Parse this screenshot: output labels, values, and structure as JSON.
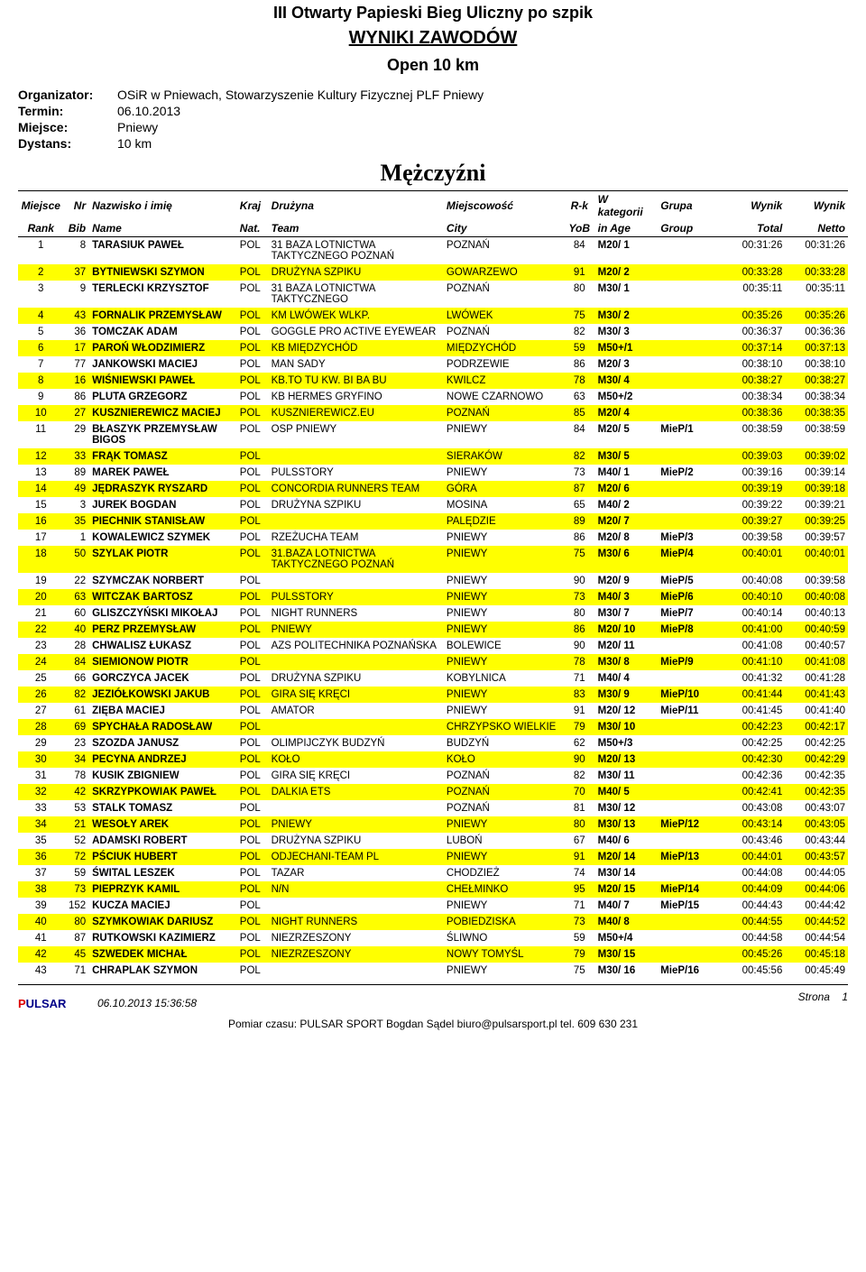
{
  "titles": {
    "main": "III Otwarty Papieski Bieg Uliczny po szpik",
    "sub": "WYNIKI ZAWODÓW",
    "category": "Open 10 km",
    "gender": "Mężczyźni"
  },
  "meta": {
    "organizer_label": "Organizator:",
    "organizer_value": "OSiR w Pniewach, Stowarzyszenie Kultury Fizycznej PLF Pniewy",
    "date_label": "Termin:",
    "date_value": "06.10.2013",
    "place_label": "Miejsce:",
    "place_value": "Pniewy",
    "distance_label": "Dystans:",
    "distance_value": "10 km"
  },
  "headers": {
    "rank1": "Miejsce",
    "rank2": "Rank",
    "bib1": "Nr",
    "bib2": "Bib",
    "name1": "Nazwisko i imię",
    "name2": "Name",
    "nat1": "Kraj",
    "nat2": "Nat.",
    "team1": "Drużyna",
    "team2": "Team",
    "city1": "Miejscowość",
    "city2": "City",
    "yob1": "R-k",
    "yob2": "YoB",
    "age1": "W kategorii",
    "age2": "in Age",
    "group1": "Grupa",
    "group2": "Group",
    "total1": "Wynik",
    "total2": "Total",
    "netto1": "Wynik",
    "netto2": "Netto"
  },
  "rows": [
    {
      "rank": "1",
      "bib": "8",
      "name": "TARASIUK PAWEŁ",
      "nat": "POL",
      "team": "31 BAZA LOTNICTWA TAKTYCZNEGO POZNAŃ",
      "city": "POZNAŃ",
      "yob": "84",
      "age": "M20/ 1",
      "group": "",
      "total": "00:31:26",
      "netto": "00:31:26",
      "hl": false
    },
    {
      "rank": "2",
      "bib": "37",
      "name": "BYTNIEWSKI SZYMON",
      "nat": "POL",
      "team": "DRUŻYNA SZPIKU",
      "city": "GOWARZEWO",
      "yob": "91",
      "age": "M20/ 2",
      "group": "",
      "total": "00:33:28",
      "netto": "00:33:28",
      "hl": true
    },
    {
      "rank": "3",
      "bib": "9",
      "name": "TERLECKI KRZYSZTOF",
      "nat": "POL",
      "team": "31 BAZA LOTNICTWA TAKTYCZNEGO",
      "city": "POZNAŃ",
      "yob": "80",
      "age": "M30/ 1",
      "group": "",
      "total": "00:35:11",
      "netto": "00:35:11",
      "hl": false
    },
    {
      "rank": "4",
      "bib": "43",
      "name": "FORNALIK PRZEMYSŁAW",
      "nat": "POL",
      "team": "KM LWÓWEK WLKP.",
      "city": "LWÓWEK",
      "yob": "75",
      "age": "M30/ 2",
      "group": "",
      "total": "00:35:26",
      "netto": "00:35:26",
      "hl": true
    },
    {
      "rank": "5",
      "bib": "36",
      "name": "TOMCZAK ADAM",
      "nat": "POL",
      "team": "GOGGLE PRO ACTIVE EYEWEAR",
      "city": "POZNAŃ",
      "yob": "82",
      "age": "M30/ 3",
      "group": "",
      "total": "00:36:37",
      "netto": "00:36:36",
      "hl": false
    },
    {
      "rank": "6",
      "bib": "17",
      "name": "PAROŃ WŁODZIMIERZ",
      "nat": "POL",
      "team": "KB MIĘDZYCHÓD",
      "city": "MIĘDZYCHÓD",
      "yob": "59",
      "age": "M50+/1",
      "group": "",
      "total": "00:37:14",
      "netto": "00:37:13",
      "hl": true
    },
    {
      "rank": "7",
      "bib": "77",
      "name": "JANKOWSKI MACIEJ",
      "nat": "POL",
      "team": "MAN SADY",
      "city": "PODRZEWIE",
      "yob": "86",
      "age": "M20/ 3",
      "group": "",
      "total": "00:38:10",
      "netto": "00:38:10",
      "hl": false
    },
    {
      "rank": "8",
      "bib": "16",
      "name": "WIŚNIEWSKI PAWEŁ",
      "nat": "POL",
      "team": "KB.TO TU KW. BI BA BU",
      "city": "KWILCZ",
      "yob": "78",
      "age": "M30/ 4",
      "group": "",
      "total": "00:38:27",
      "netto": "00:38:27",
      "hl": true
    },
    {
      "rank": "9",
      "bib": "86",
      "name": "PLUTA GRZEGORZ",
      "nat": "POL",
      "team": "KB HERMES GRYFINO",
      "city": "NOWE CZARNOWO",
      "yob": "63",
      "age": "M50+/2",
      "group": "",
      "total": "00:38:34",
      "netto": "00:38:34",
      "hl": false
    },
    {
      "rank": "10",
      "bib": "27",
      "name": "KUSZNIEREWICZ MACIEJ",
      "nat": "POL",
      "team": "KUSZNIEREWICZ.EU",
      "city": "POZNAŃ",
      "yob": "85",
      "age": "M20/ 4",
      "group": "",
      "total": "00:38:36",
      "netto": "00:38:35",
      "hl": true
    },
    {
      "rank": "11",
      "bib": "29",
      "name": "BŁASZYK PRZEMYSŁAW BIGOS",
      "nat": "POL",
      "team": "OSP PNIEWY",
      "city": "PNIEWY",
      "yob": "84",
      "age": "M20/ 5",
      "group": "MieP/1",
      "total": "00:38:59",
      "netto": "00:38:59",
      "hl": false
    },
    {
      "rank": "12",
      "bib": "33",
      "name": "FRĄK TOMASZ",
      "nat": "POL",
      "team": "",
      "city": "SIERAKÓW",
      "yob": "82",
      "age": "M30/ 5",
      "group": "",
      "total": "00:39:03",
      "netto": "00:39:02",
      "hl": true
    },
    {
      "rank": "13",
      "bib": "89",
      "name": "MAREK PAWEŁ",
      "nat": "POL",
      "team": "PULSSTORY",
      "city": "PNIEWY",
      "yob": "73",
      "age": "M40/ 1",
      "group": "MieP/2",
      "total": "00:39:16",
      "netto": "00:39:14",
      "hl": false
    },
    {
      "rank": "14",
      "bib": "49",
      "name": "JĘDRASZYK RYSZARD",
      "nat": "POL",
      "team": "CONCORDIA RUNNERS TEAM",
      "city": "GÓRA",
      "yob": "87",
      "age": "M20/ 6",
      "group": "",
      "total": "00:39:19",
      "netto": "00:39:18",
      "hl": true
    },
    {
      "rank": "15",
      "bib": "3",
      "name": "JUREK BOGDAN",
      "nat": "POL",
      "team": "DRUŻYNA SZPIKU",
      "city": "MOSINA",
      "yob": "65",
      "age": "M40/ 2",
      "group": "",
      "total": "00:39:22",
      "netto": "00:39:21",
      "hl": false
    },
    {
      "rank": "16",
      "bib": "35",
      "name": "PIECHNIK STANISŁAW",
      "nat": "POL",
      "team": "",
      "city": "PALĘDZIE",
      "yob": "89",
      "age": "M20/ 7",
      "group": "",
      "total": "00:39:27",
      "netto": "00:39:25",
      "hl": true
    },
    {
      "rank": "17",
      "bib": "1",
      "name": "KOWALEWICZ SZYMEK",
      "nat": "POL",
      "team": "RZEŻUCHA TEAM",
      "city": "PNIEWY",
      "yob": "86",
      "age": "M20/ 8",
      "group": "MieP/3",
      "total": "00:39:58",
      "netto": "00:39:57",
      "hl": false
    },
    {
      "rank": "18",
      "bib": "50",
      "name": "SZYLAK PIOTR",
      "nat": "POL",
      "team": "31.BAZA LOTNICTWA TAKTYCZNEGO POZNAŃ",
      "city": "PNIEWY",
      "yob": "75",
      "age": "M30/ 6",
      "group": "MieP/4",
      "total": "00:40:01",
      "netto": "00:40:01",
      "hl": true
    },
    {
      "rank": "19",
      "bib": "22",
      "name": "SZYMCZAK NORBERT",
      "nat": "POL",
      "team": "",
      "city": "PNIEWY",
      "yob": "90",
      "age": "M20/ 9",
      "group": "MieP/5",
      "total": "00:40:08",
      "netto": "00:39:58",
      "hl": false
    },
    {
      "rank": "20",
      "bib": "63",
      "name": "WITCZAK BARTOSZ",
      "nat": "POL",
      "team": "PULSSTORY",
      "city": "PNIEWY",
      "yob": "73",
      "age": "M40/ 3",
      "group": "MieP/6",
      "total": "00:40:10",
      "netto": "00:40:08",
      "hl": true
    },
    {
      "rank": "21",
      "bib": "60",
      "name": "GLISZCZYŃSKI MIKOŁAJ",
      "nat": "POL",
      "team": "NIGHT RUNNERS",
      "city": "PNIEWY",
      "yob": "80",
      "age": "M30/ 7",
      "group": "MieP/7",
      "total": "00:40:14",
      "netto": "00:40:13",
      "hl": false
    },
    {
      "rank": "22",
      "bib": "40",
      "name": "PERZ PRZEMYSŁAW",
      "nat": "POL",
      "team": "PNIEWY",
      "city": "PNIEWY",
      "yob": "86",
      "age": "M20/ 10",
      "group": "MieP/8",
      "total": "00:41:00",
      "netto": "00:40:59",
      "hl": true
    },
    {
      "rank": "23",
      "bib": "28",
      "name": "CHWALISZ ŁUKASZ",
      "nat": "POL",
      "team": "AZS POLITECHNIKA POZNAŃSKA",
      "city": "BOLEWICE",
      "yob": "90",
      "age": "M20/ 11",
      "group": "",
      "total": "00:41:08",
      "netto": "00:40:57",
      "hl": false
    },
    {
      "rank": "24",
      "bib": "84",
      "name": "SIEMIONOW PIOTR",
      "nat": "POL",
      "team": "",
      "city": "PNIEWY",
      "yob": "78",
      "age": "M30/ 8",
      "group": "MieP/9",
      "total": "00:41:10",
      "netto": "00:41:08",
      "hl": true
    },
    {
      "rank": "25",
      "bib": "66",
      "name": "GORCZYCA JACEK",
      "nat": "POL",
      "team": "DRUŻYNA SZPIKU",
      "city": "KOBYLNICA",
      "yob": "71",
      "age": "M40/ 4",
      "group": "",
      "total": "00:41:32",
      "netto": "00:41:28",
      "hl": false
    },
    {
      "rank": "26",
      "bib": "82",
      "name": "JEZIÓŁKOWSKI JAKUB",
      "nat": "POL",
      "team": "GIRA SIĘ KRĘCI",
      "city": "PNIEWY",
      "yob": "83",
      "age": "M30/ 9",
      "group": "MieP/10",
      "total": "00:41:44",
      "netto": "00:41:43",
      "hl": true
    },
    {
      "rank": "27",
      "bib": "61",
      "name": "ZIĘBA MACIEJ",
      "nat": "POL",
      "team": "AMATOR",
      "city": "PNIEWY",
      "yob": "91",
      "age": "M20/ 12",
      "group": "MieP/11",
      "total": "00:41:45",
      "netto": "00:41:40",
      "hl": false
    },
    {
      "rank": "28",
      "bib": "69",
      "name": "SPYCHAŁA RADOSŁAW",
      "nat": "POL",
      "team": "",
      "city": "CHRZYPSKO WIELKIE",
      "yob": "79",
      "age": "M30/ 10",
      "group": "",
      "total": "00:42:23",
      "netto": "00:42:17",
      "hl": true
    },
    {
      "rank": "29",
      "bib": "23",
      "name": "SZOZDA JANUSZ",
      "nat": "POL",
      "team": "OLIMPIJCZYK BUDZYŃ",
      "city": "BUDZYŃ",
      "yob": "62",
      "age": "M50+/3",
      "group": "",
      "total": "00:42:25",
      "netto": "00:42:25",
      "hl": false
    },
    {
      "rank": "30",
      "bib": "34",
      "name": "PECYNA ANDRZEJ",
      "nat": "POL",
      "team": "KOŁO",
      "city": "KOŁO",
      "yob": "90",
      "age": "M20/ 13",
      "group": "",
      "total": "00:42:30",
      "netto": "00:42:29",
      "hl": true
    },
    {
      "rank": "31",
      "bib": "78",
      "name": "KUSIK ZBIGNIEW",
      "nat": "POL",
      "team": "GIRA SIĘ KRĘCI",
      "city": "POZNAŃ",
      "yob": "82",
      "age": "M30/ 11",
      "group": "",
      "total": "00:42:36",
      "netto": "00:42:35",
      "hl": false
    },
    {
      "rank": "32",
      "bib": "42",
      "name": "SKRZYPKOWIAK PAWEŁ",
      "nat": "POL",
      "team": "DALKIA ETS",
      "city": "POZNAŃ",
      "yob": "70",
      "age": "M40/ 5",
      "group": "",
      "total": "00:42:41",
      "netto": "00:42:35",
      "hl": true
    },
    {
      "rank": "33",
      "bib": "53",
      "name": "STALK TOMASZ",
      "nat": "POL",
      "team": "",
      "city": "POZNAŃ",
      "yob": "81",
      "age": "M30/ 12",
      "group": "",
      "total": "00:43:08",
      "netto": "00:43:07",
      "hl": false
    },
    {
      "rank": "34",
      "bib": "21",
      "name": "WESOŁY AREK",
      "nat": "POL",
      "team": "PNIEWY",
      "city": "PNIEWY",
      "yob": "80",
      "age": "M30/ 13",
      "group": "MieP/12",
      "total": "00:43:14",
      "netto": "00:43:05",
      "hl": true
    },
    {
      "rank": "35",
      "bib": "52",
      "name": "ADAMSKI ROBERT",
      "nat": "POL",
      "team": "DRUŻYNA SZPIKU",
      "city": "LUBOŃ",
      "yob": "67",
      "age": "M40/ 6",
      "group": "",
      "total": "00:43:46",
      "netto": "00:43:44",
      "hl": false
    },
    {
      "rank": "36",
      "bib": "72",
      "name": "PŚCIUK HUBERT",
      "nat": "POL",
      "team": "ODJECHANI-TEAM PL",
      "city": "PNIEWY",
      "yob": "91",
      "age": "M20/ 14",
      "group": "MieP/13",
      "total": "00:44:01",
      "netto": "00:43:57",
      "hl": true
    },
    {
      "rank": "37",
      "bib": "59",
      "name": "ŚWITAL LESZEK",
      "nat": "POL",
      "team": "TAZAR",
      "city": "CHODZIEŻ",
      "yob": "74",
      "age": "M30/ 14",
      "group": "",
      "total": "00:44:08",
      "netto": "00:44:05",
      "hl": false
    },
    {
      "rank": "38",
      "bib": "73",
      "name": "PIEPRZYK KAMIL",
      "nat": "POL",
      "team": "N/N",
      "city": "CHEŁMINKO",
      "yob": "95",
      "age": "M20/ 15",
      "group": "MieP/14",
      "total": "00:44:09",
      "netto": "00:44:06",
      "hl": true
    },
    {
      "rank": "39",
      "bib": "152",
      "name": "KUCZA MACIEJ",
      "nat": "POL",
      "team": "",
      "city": "PNIEWY",
      "yob": "71",
      "age": "M40/ 7",
      "group": "MieP/15",
      "total": "00:44:43",
      "netto": "00:44:42",
      "hl": false
    },
    {
      "rank": "40",
      "bib": "80",
      "name": "SZYMKOWIAK DARIUSZ",
      "nat": "POL",
      "team": "NIGHT RUNNERS",
      "city": "POBIEDZISKA",
      "yob": "73",
      "age": "M40/ 8",
      "group": "",
      "total": "00:44:55",
      "netto": "00:44:52",
      "hl": true
    },
    {
      "rank": "41",
      "bib": "87",
      "name": "RUTKOWSKI KAZIMIERZ",
      "nat": "POL",
      "team": "NIEZRZESZONY",
      "city": "ŚLIWNO",
      "yob": "59",
      "age": "M50+/4",
      "group": "",
      "total": "00:44:58",
      "netto": "00:44:54",
      "hl": false
    },
    {
      "rank": "42",
      "bib": "45",
      "name": "SZWEDEK MICHAŁ",
      "nat": "POL",
      "team": "NIEZRZESZONY",
      "city": "NOWY TOMYŚL",
      "yob": "79",
      "age": "M30/ 15",
      "group": "",
      "total": "00:45:26",
      "netto": "00:45:18",
      "hl": true
    },
    {
      "rank": "43",
      "bib": "71",
      "name": "CHRAPLAK SZYMON",
      "nat": "POL",
      "team": "",
      "city": "PNIEWY",
      "yob": "75",
      "age": "M30/ 16",
      "group": "MieP/16",
      "total": "00:45:56",
      "netto": "00:45:49",
      "hl": false
    }
  ],
  "footer": {
    "logo_p": "P",
    "logo_ulsar": "ULSAR",
    "timestamp": "06.10.2013 15:36:58",
    "credit": "Pomiar czasu: PULSAR SPORT Bogdan Sądel biuro@pulsarsport.pl tel. 609 630 231",
    "page_label": "Strona",
    "page_num": "1"
  }
}
